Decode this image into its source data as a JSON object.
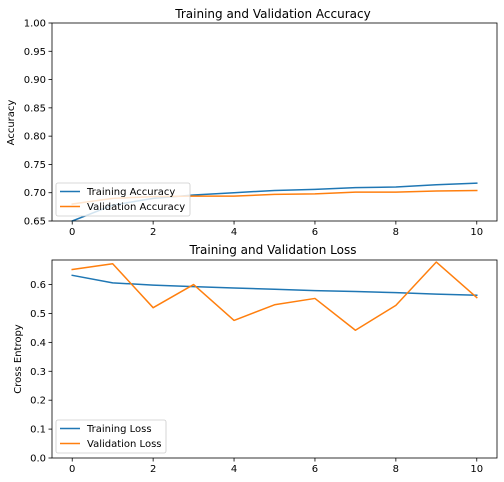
{
  "chart_data": [
    {
      "type": "line",
      "title": "Training and Validation Accuracy",
      "xlabel": "",
      "ylabel": "Accuracy",
      "xlim": [
        -0.5,
        10.5
      ],
      "ylim": [
        0.65,
        1.0
      ],
      "x": [
        0,
        1,
        2,
        3,
        4,
        5,
        6,
        7,
        8,
        9,
        10
      ],
      "xticks": [
        "0",
        "2",
        "4",
        "6",
        "8",
        "10"
      ],
      "yticks": [
        "0.65",
        "0.70",
        "0.75",
        "0.80",
        "0.85",
        "0.90",
        "0.95",
        "1.00"
      ],
      "grid": false,
      "legend_position": "lower-left",
      "series": [
        {
          "name": "Training Accuracy",
          "color": "#1f77b4",
          "values": [
            0.65,
            0.678,
            0.69,
            0.696,
            0.7,
            0.704,
            0.706,
            0.709,
            0.71,
            0.714,
            0.717
          ]
        },
        {
          "name": "Validation Accuracy",
          "color": "#ff7f0e",
          "values": [
            0.68,
            0.69,
            0.693,
            0.694,
            0.694,
            0.697,
            0.698,
            0.701,
            0.701,
            0.703,
            0.704
          ]
        }
      ]
    },
    {
      "type": "line",
      "title": "Training and Validation Loss",
      "xlabel": "",
      "ylabel": "Cross Entropy",
      "xlim": [
        -0.5,
        10.5
      ],
      "ylim": [
        0.0,
        0.685
      ],
      "x": [
        0,
        1,
        2,
        3,
        4,
        5,
        6,
        7,
        8,
        9,
        10
      ],
      "xticks": [
        "0",
        "2",
        "4",
        "6",
        "8",
        "10"
      ],
      "yticks": [
        "0.0",
        "0.1",
        "0.2",
        "0.3",
        "0.4",
        "0.5",
        "0.6"
      ],
      "grid": false,
      "legend_position": "lower-left",
      "series": [
        {
          "name": "Training Loss",
          "color": "#1f77b4",
          "values": [
            0.632,
            0.606,
            0.598,
            0.593,
            0.588,
            0.584,
            0.579,
            0.576,
            0.572,
            0.567,
            0.563
          ]
        },
        {
          "name": "Validation Loss",
          "color": "#ff7f0e",
          "values": [
            0.652,
            0.672,
            0.52,
            0.6,
            0.476,
            0.53,
            0.552,
            0.442,
            0.528,
            0.678,
            0.555
          ]
        }
      ]
    }
  ]
}
